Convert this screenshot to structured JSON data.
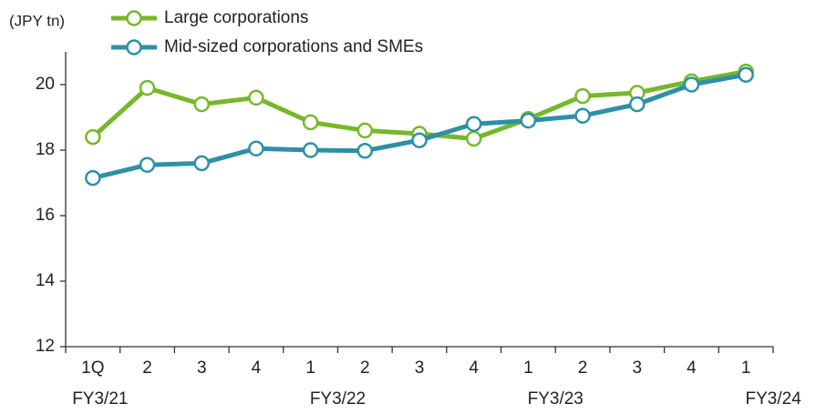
{
  "chart_data": {
    "type": "line",
    "y_axis_label": "(JPY tn)",
    "categories": [
      "1Q",
      "2",
      "3",
      "4",
      "1",
      "2",
      "3",
      "4",
      "1",
      "2",
      "3",
      "4",
      "1"
    ],
    "fiscal_years": [
      "FY3/21",
      "FY3/22",
      "FY3/23",
      "FY3/24"
    ],
    "series": [
      {
        "name": "Large corporations",
        "color": "#76b82a",
        "values": [
          18.4,
          19.9,
          19.4,
          19.6,
          18.85,
          18.6,
          18.5,
          18.35,
          18.95,
          19.65,
          19.75,
          20.1,
          20.4
        ]
      },
      {
        "name": "Mid-sized corporations and SMEs",
        "color": "#2e8fa8",
        "values": [
          17.15,
          17.55,
          17.6,
          18.05,
          18.0,
          17.98,
          18.3,
          18.8,
          18.9,
          19.05,
          19.4,
          20.0,
          20.3
        ]
      }
    ],
    "ylim": [
      12,
      21
    ],
    "yticks": [
      12,
      14,
      16,
      18,
      20
    ],
    "grid": false
  }
}
